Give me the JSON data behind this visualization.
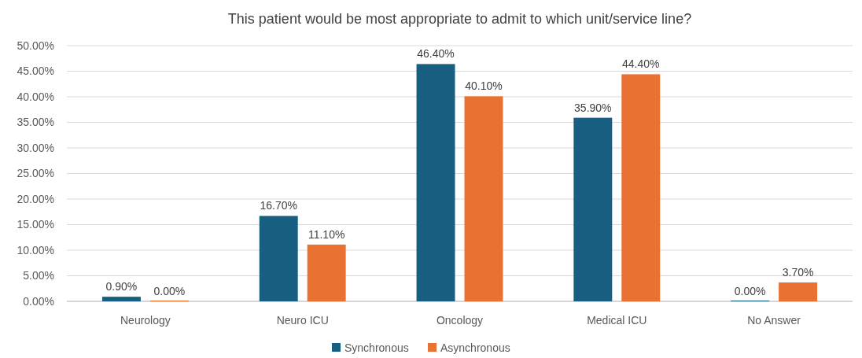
{
  "chart_data": {
    "type": "bar",
    "title": "This patient would be most appropriate to admit to which unit/service line?",
    "categories": [
      "Neurology",
      "Neuro ICU",
      "Oncology",
      "Medical ICU",
      "No Answer"
    ],
    "series": [
      {
        "name": "Synchronous",
        "color": "#175e80",
        "values": [
          0.9,
          16.7,
          46.4,
          35.9,
          0
        ],
        "value_labels": [
          "0.90%",
          "16.70%",
          "46.40%",
          "35.90%",
          "0.00%"
        ]
      },
      {
        "name": "Asynchronous",
        "color": "#e97132",
        "values": [
          0,
          11.1,
          40.1,
          44.4,
          3.7
        ],
        "value_labels": [
          "0.00%",
          "11.10%",
          "40.10%",
          "44.40%",
          "3.70%"
        ]
      }
    ],
    "ylim": [
      0,
      50
    ],
    "yticks": [
      {
        "value": 0,
        "label": "0.00%"
      },
      {
        "value": 5,
        "label": "5.00%"
      },
      {
        "value": 10,
        "label": "10.00%"
      },
      {
        "value": 15,
        "label": "15.00%"
      },
      {
        "value": 20,
        "label": "20.00%"
      },
      {
        "value": 25,
        "label": "25.00%"
      },
      {
        "value": 30,
        "label": "30.00%"
      },
      {
        "value": 35,
        "label": "35.00%"
      },
      {
        "value": 40,
        "label": "40.00%"
      },
      {
        "value": 45,
        "label": "45.00%"
      },
      {
        "value": 50,
        "label": "50.00%"
      }
    ],
    "grid": "y",
    "legend": "bottom"
  }
}
